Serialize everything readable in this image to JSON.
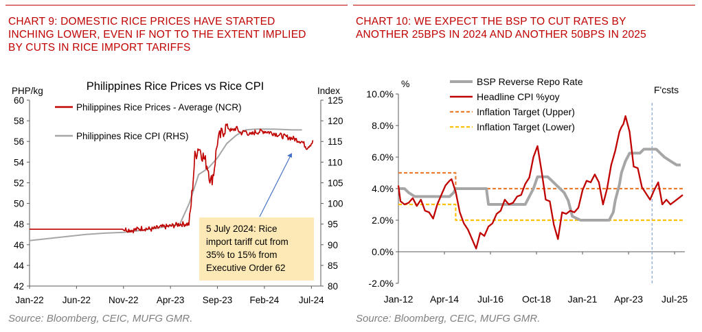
{
  "chart_data": [
    {
      "type": "line",
      "heading": [
        "CHART 9: DOMESTIC RICE PRICES HAVE STARTED",
        "INCHING LOWER, EVEN IF NOT TO THE EXTENT IMPLIED",
        "BY CUTS IN RICE IMPORT TARIFFS"
      ],
      "title": "Philippines Rice Prices vs Rice CPI",
      "ylabel_left": "PHP/kg",
      "ylabel_right": "Index",
      "ylim_left": [
        42,
        60
      ],
      "ylim_right": [
        80,
        125
      ],
      "yticks_left": [
        "42",
        "44",
        "46",
        "48",
        "50",
        "52",
        "54",
        "56",
        "58",
        "60"
      ],
      "yticks_right": [
        "80",
        "85",
        "90",
        "95",
        "100",
        "105",
        "110",
        "115",
        "120",
        "125"
      ],
      "xticks": [
        "Jan-22",
        "Jun-22",
        "Nov-22",
        "Apr-23",
        "Sep-23",
        "Feb-24",
        "Jul-24"
      ],
      "series": [
        {
          "name": "Philippines Rice Prices - Average (NCR)",
          "axis": "left",
          "color": "#c00000",
          "x": [
            0,
            10,
            11,
            12,
            13,
            14,
            15,
            16,
            17,
            17.3,
            17.6,
            18,
            18.5,
            19,
            19.3,
            19.6,
            20,
            20.3,
            20.6,
            21,
            21.5,
            22,
            22.5,
            23,
            23.5,
            24,
            25,
            26,
            27,
            28,
            29,
            29.5,
            30.2
          ],
          "y": [
            47.5,
            47.5,
            47.4,
            47.6,
            47.5,
            47.7,
            47.8,
            48.0,
            48.0,
            51.0,
            54.5,
            55.5,
            54.5,
            53.5,
            52.0,
            53.0,
            56.0,
            56.5,
            57.0,
            57.5,
            57.0,
            57.3,
            56.8,
            57.0,
            56.6,
            56.9,
            57.0,
            56.8,
            56.5,
            56.3,
            56.0,
            55.4,
            56.0
          ]
        },
        {
          "name": "Philippines Rice CPI (RHS)",
          "axis": "right",
          "color": "#a6a6a6",
          "x": [
            0,
            2,
            4,
            6,
            8,
            10,
            12,
            14,
            16,
            17,
            18,
            19,
            20,
            21,
            22,
            23,
            24,
            26,
            28,
            29
          ],
          "y": [
            91.0,
            91.5,
            92.0,
            92.5,
            92.8,
            93.0,
            93.5,
            94.2,
            95.0,
            100.0,
            107.0,
            108.5,
            111.0,
            114.5,
            116.5,
            117.8,
            118.0,
            118.0,
            117.8,
            117.8
          ]
        }
      ],
      "annotation": [
        "5 July 2024: Rice",
        "import tariff cut from",
        "35% to 15% from",
        "Executive Order 62"
      ],
      "source": "Source: Bloomberg, CEIC, MUFG GMR."
    },
    {
      "type": "line",
      "heading": [
        "CHART 10: WE EXPECT THE BSP TO CUT RATES BY",
        "ANOTHER 25BPS IN 2024 AND ANOTHER 50BPS IN 2025"
      ],
      "ylabel": "%",
      "ylim": [
        -2,
        10
      ],
      "yticks": [
        "-2.0%",
        "0.0%",
        "2.0%",
        "4.0%",
        "6.0%",
        "8.0%",
        "10.0%"
      ],
      "xticks": [
        "Jan-12",
        "Apr-14",
        "Jul-16",
        "Oct-18",
        "Jan-21",
        "Apr-23",
        "Jul-25"
      ],
      "forecast_label": "F'csts",
      "forecast_start": 2024.4,
      "series": [
        {
          "name": "BSP Reverse Repo Rate",
          "color": "#a6a6a6",
          "style": "solid-thick",
          "x": [
            2012.0,
            2012.3,
            2012.5,
            2012.8,
            2013.0,
            2014.5,
            2014.7,
            2014.8,
            2016.3,
            2016.4,
            2018.2,
            2018.4,
            2018.6,
            2018.8,
            2019.3,
            2019.5,
            2019.7,
            2019.9,
            2020.1,
            2020.3,
            2020.5,
            2020.9,
            2022.3,
            2022.5,
            2022.6,
            2022.8,
            2022.9,
            2023.1,
            2023.3,
            2023.8,
            2024.0,
            2024.6,
            2024.8,
            2025.0,
            2025.3,
            2025.6,
            2025.8
          ],
          "y": [
            4.0,
            4.0,
            3.75,
            3.5,
            3.5,
            3.5,
            3.75,
            4.0,
            4.0,
            3.0,
            3.0,
            3.5,
            4.0,
            4.75,
            4.75,
            4.5,
            4.25,
            4.0,
            3.75,
            3.25,
            2.25,
            2.0,
            2.0,
            2.5,
            3.25,
            4.25,
            5.0,
            5.75,
            6.25,
            6.25,
            6.5,
            6.5,
            6.25,
            6.0,
            5.75,
            5.5,
            5.5
          ]
        },
        {
          "name": "Headline CPI %yoy",
          "color": "#c00000",
          "style": "solid",
          "x": [
            2012.0,
            2012.1,
            2012.3,
            2012.5,
            2012.7,
            2012.9,
            2013.1,
            2013.3,
            2013.5,
            2013.7,
            2013.9,
            2014.1,
            2014.3,
            2014.5,
            2014.6,
            2014.8,
            2015.0,
            2015.2,
            2015.4,
            2015.6,
            2015.8,
            2016.0,
            2016.2,
            2016.4,
            2016.6,
            2016.8,
            2017.0,
            2017.2,
            2017.4,
            2017.6,
            2017.8,
            2018.0,
            2018.2,
            2018.4,
            2018.6,
            2018.8,
            2019.0,
            2019.2,
            2019.4,
            2019.6,
            2019.8,
            2020.0,
            2020.2,
            2020.4,
            2020.6,
            2020.8,
            2021.0,
            2021.2,
            2021.4,
            2021.6,
            2021.8,
            2022.0,
            2022.2,
            2022.4,
            2022.6,
            2022.8,
            2022.9,
            2023.0,
            2023.1,
            2023.3,
            2023.5,
            2023.7,
            2023.9,
            2024.1,
            2024.3,
            2024.5,
            2024.7,
            2024.9,
            2025.1,
            2025.3,
            2025.5,
            2025.7,
            2025.9
          ],
          "y": [
            4.2,
            3.2,
            3.0,
            3.1,
            3.4,
            2.9,
            3.3,
            2.6,
            2.5,
            2.1,
            3.0,
            3.6,
            4.2,
            4.5,
            4.6,
            3.8,
            2.5,
            1.8,
            1.4,
            0.8,
            0.2,
            1.2,
            1.0,
            1.6,
            1.8,
            2.4,
            2.6,
            3.3,
            3.0,
            3.1,
            3.5,
            3.6,
            4.3,
            4.7,
            6.0,
            6.7,
            5.1,
            3.3,
            3.2,
            1.7,
            0.8,
            2.5,
            2.4,
            2.6,
            2.5,
            2.8,
            3.9,
            4.5,
            4.4,
            4.9,
            4.4,
            3.0,
            4.0,
            5.5,
            6.4,
            7.6,
            7.9,
            8.1,
            8.6,
            7.6,
            5.4,
            5.3,
            4.1,
            3.7,
            3.3,
            3.9,
            4.4,
            3.0,
            3.3,
            3.0,
            3.2,
            3.4,
            3.6
          ]
        },
        {
          "name": "Inflation Target (Upper)",
          "color": "#ed7d31",
          "style": "dashed",
          "x": [
            2012.0,
            2014.8,
            2014.8,
            2025.9
          ],
          "y": [
            5.0,
            5.0,
            4.0,
            4.0
          ]
        },
        {
          "name": "Inflation Target (Lower)",
          "color": "#ffc000",
          "style": "dashed",
          "x": [
            2012.0,
            2014.8,
            2014.8,
            2025.9
          ],
          "y": [
            3.0,
            3.0,
            2.0,
            2.0
          ]
        }
      ],
      "source": "Source: Bloomberg, CEIC, MUFG GMR."
    }
  ]
}
